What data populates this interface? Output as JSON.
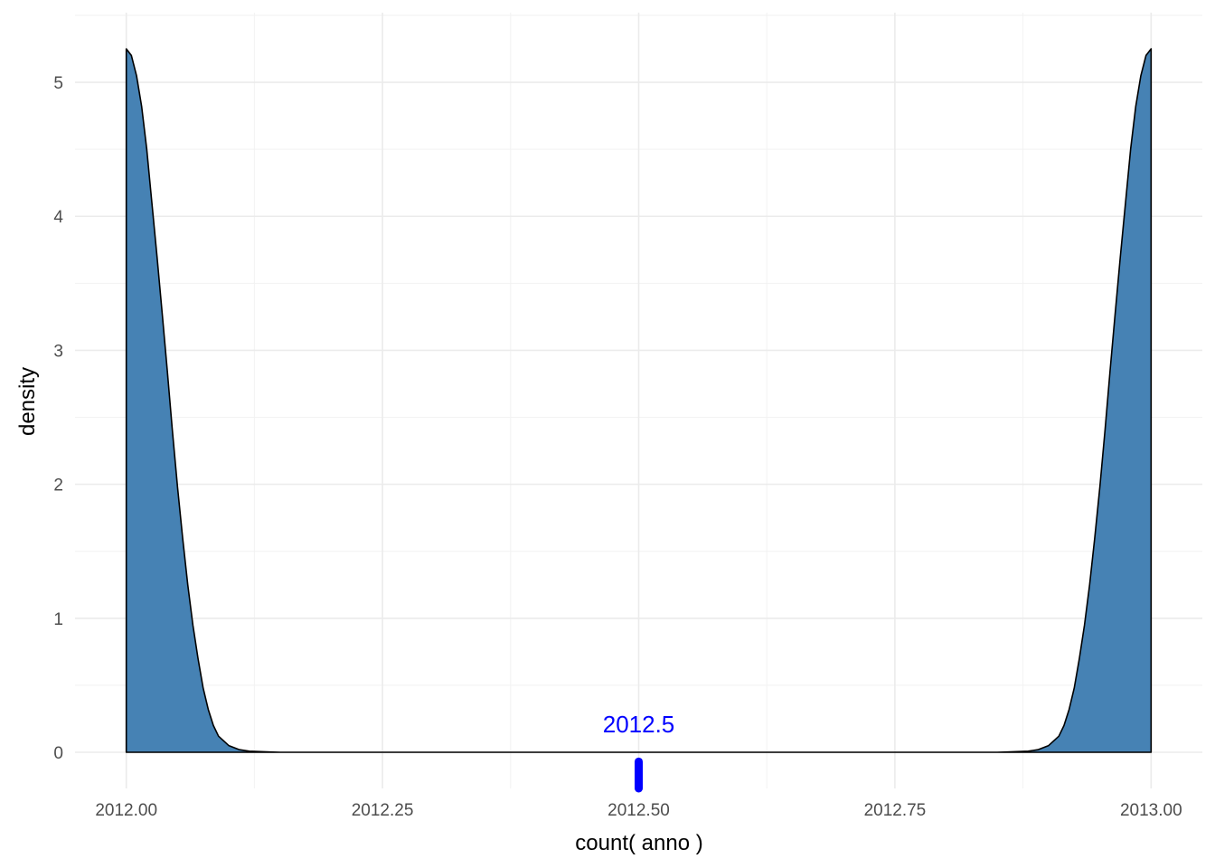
{
  "chart_data": {
    "type": "area",
    "title": "",
    "xlabel": "count( anno )",
    "ylabel": "density",
    "xlim": [
      1991.96,
      2013.04
    ],
    "ylim": [
      0,
      5.5
    ],
    "x_ticks": [
      {
        "value": 2012.0,
        "label": "2012.00"
      },
      {
        "value": 2012.25,
        "label": "2012.25"
      },
      {
        "value": 2012.5,
        "label": "2012.50"
      },
      {
        "value": 2012.75,
        "label": "2012.75"
      },
      {
        "value": 2013.0,
        "label": "2013.00"
      }
    ],
    "y_ticks": [
      {
        "value": 0,
        "label": "0"
      },
      {
        "value": 1,
        "label": "1"
      },
      {
        "value": 2,
        "label": "2"
      },
      {
        "value": 3,
        "label": "3"
      },
      {
        "value": 4,
        "label": "4"
      },
      {
        "value": 5,
        "label": "5"
      }
    ],
    "grid": true,
    "fill_color": "#4682B4",
    "outline_color": "#000000",
    "density_points": [
      [
        2012.0,
        5.25
      ],
      [
        2012.005,
        5.2
      ],
      [
        2012.01,
        5.05
      ],
      [
        2012.015,
        4.82
      ],
      [
        2012.02,
        4.5
      ],
      [
        2012.025,
        4.1
      ],
      [
        2012.03,
        3.7
      ],
      [
        2012.035,
        3.28
      ],
      [
        2012.04,
        2.85
      ],
      [
        2012.045,
        2.4
      ],
      [
        2012.05,
        1.98
      ],
      [
        2012.055,
        1.6
      ],
      [
        2012.06,
        1.25
      ],
      [
        2012.065,
        0.95
      ],
      [
        2012.07,
        0.7
      ],
      [
        2012.075,
        0.48
      ],
      [
        2012.08,
        0.32
      ],
      [
        2012.085,
        0.2
      ],
      [
        2012.09,
        0.12
      ],
      [
        2012.1,
        0.05
      ],
      [
        2012.11,
        0.02
      ],
      [
        2012.12,
        0.008
      ],
      [
        2012.14,
        0.002
      ],
      [
        2012.15,
        0.0
      ],
      [
        2012.85,
        0.0
      ],
      [
        2012.86,
        0.002
      ],
      [
        2012.88,
        0.008
      ],
      [
        2012.89,
        0.02
      ],
      [
        2012.9,
        0.05
      ],
      [
        2012.91,
        0.12
      ],
      [
        2012.915,
        0.2
      ],
      [
        2012.92,
        0.32
      ],
      [
        2012.925,
        0.48
      ],
      [
        2012.93,
        0.7
      ],
      [
        2012.935,
        0.95
      ],
      [
        2012.94,
        1.25
      ],
      [
        2012.945,
        1.6
      ],
      [
        2012.95,
        1.98
      ],
      [
        2012.955,
        2.4
      ],
      [
        2012.96,
        2.85
      ],
      [
        2012.965,
        3.28
      ],
      [
        2012.97,
        3.7
      ],
      [
        2012.975,
        4.1
      ],
      [
        2012.98,
        4.5
      ],
      [
        2012.985,
        4.82
      ],
      [
        2012.99,
        5.05
      ],
      [
        2012.995,
        5.2
      ],
      [
        2013.0,
        5.25
      ]
    ],
    "annotation": {
      "text": "2012.5",
      "x": 2012.5,
      "color": "#0000FF"
    },
    "mean_marker": {
      "x": 2012.5,
      "y_top": -0.07,
      "y_bottom": -0.27,
      "color": "#0000FF"
    }
  }
}
